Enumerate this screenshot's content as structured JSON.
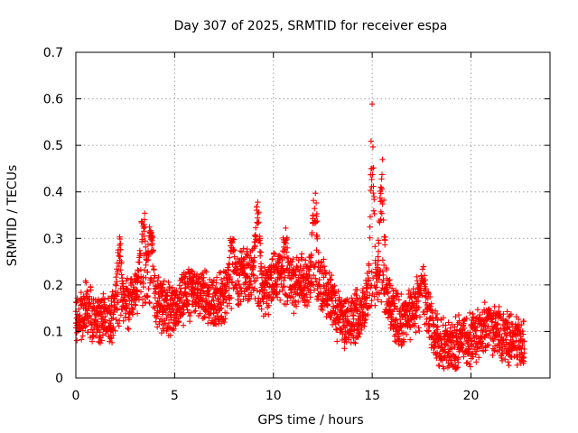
{
  "chart_data": {
    "type": "scatter",
    "title": "Day 307 of 2025, SRMTID for receiver espa",
    "xlabel": "GPS time / hours",
    "ylabel": "SRMTID / TECUs",
    "xlim": [
      0,
      24
    ],
    "ylim": [
      0,
      0.7
    ],
    "x_ticks": [
      0,
      5,
      10,
      15,
      20
    ],
    "x_tick_labels": [
      "0",
      "5",
      "10",
      "15",
      "20"
    ],
    "y_ticks": [
      0,
      0.1,
      0.2,
      0.3,
      0.4,
      0.5,
      0.6,
      0.7
    ],
    "y_tick_labels": [
      "0",
      "0.1",
      "0.2",
      "0.3",
      "0.4",
      "0.5",
      "0.6",
      "0.7"
    ],
    "grid": true,
    "marker": "plus",
    "color": "#ff0000",
    "point_interval_hours": 0.02,
    "trend": [
      [
        0.0,
        0.12
      ],
      [
        0.5,
        0.15
      ],
      [
        1.0,
        0.13
      ],
      [
        1.5,
        0.12
      ],
      [
        2.0,
        0.15
      ],
      [
        2.5,
        0.16
      ],
      [
        3.0,
        0.18
      ],
      [
        3.5,
        0.22
      ],
      [
        4.0,
        0.17
      ],
      [
        4.5,
        0.15
      ],
      [
        5.0,
        0.14
      ],
      [
        5.5,
        0.17
      ],
      [
        6.0,
        0.19
      ],
      [
        6.5,
        0.18
      ],
      [
        7.0,
        0.16
      ],
      [
        7.5,
        0.17
      ],
      [
        8.0,
        0.2
      ],
      [
        8.5,
        0.23
      ],
      [
        9.0,
        0.21
      ],
      [
        9.5,
        0.18
      ],
      [
        10.0,
        0.22
      ],
      [
        10.5,
        0.2
      ],
      [
        11.0,
        0.2
      ],
      [
        11.5,
        0.21
      ],
      [
        12.0,
        0.22
      ],
      [
        12.5,
        0.2
      ],
      [
        13.0,
        0.16
      ],
      [
        13.5,
        0.12
      ],
      [
        14.0,
        0.13
      ],
      [
        14.5,
        0.14
      ],
      [
        15.0,
        0.2
      ],
      [
        15.5,
        0.2
      ],
      [
        16.0,
        0.14
      ],
      [
        16.5,
        0.12
      ],
      [
        17.0,
        0.14
      ],
      [
        17.5,
        0.17
      ],
      [
        18.0,
        0.11
      ],
      [
        18.5,
        0.07
      ],
      [
        19.0,
        0.07
      ],
      [
        19.5,
        0.08
      ],
      [
        20.0,
        0.08
      ],
      [
        20.5,
        0.1
      ],
      [
        21.0,
        0.11
      ],
      [
        21.5,
        0.1
      ],
      [
        22.0,
        0.08
      ],
      [
        22.7,
        0.08
      ]
    ],
    "spikes": [
      {
        "x": 2.2,
        "y": 0.31
      },
      {
        "x": 3.4,
        "y": 0.38
      },
      {
        "x": 3.8,
        "y": 0.35
      },
      {
        "x": 7.9,
        "y": 0.33
      },
      {
        "x": 9.2,
        "y": 0.39
      },
      {
        "x": 10.6,
        "y": 0.34
      },
      {
        "x": 12.1,
        "y": 0.42
      },
      {
        "x": 15.0,
        "y": 0.62
      },
      {
        "x": 15.5,
        "y": 0.48
      },
      {
        "x": 17.6,
        "y": 0.24
      },
      {
        "x": 20.9,
        "y": 0.15
      }
    ],
    "x_end": 22.7
  }
}
